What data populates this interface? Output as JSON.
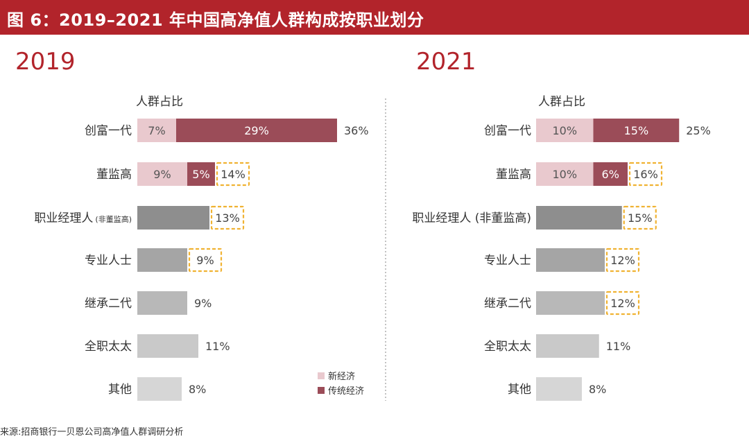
{
  "header": {
    "title": "图 6：2019–2021 年中国高净值人群构成按职业划分"
  },
  "source": "来源:招商银行一贝恩公司高净值人群调研分析",
  "colors": {
    "header_bg": "#b2242b",
    "new_economy": "#e9c9ce",
    "traditional_economy": "#9b4c58",
    "total_bar_shades": [
      "#8e8e8e",
      "#a5a5a5",
      "#b8b8b8",
      "#c9c9c9",
      "#d6d6d6",
      "#e2e2e2"
    ],
    "highlight_border": "#f0b232"
  },
  "chart_data": [
    {
      "type": "bar",
      "year": "2019",
      "subtitle": "人群占比",
      "categories": [
        "创富一代",
        "董监高",
        "职业经理人",
        "专业人士",
        "继承二代",
        "全职太太",
        "其他"
      ],
      "category_suffix": [
        "",
        "",
        "(非董监高)",
        "",
        "",
        "",
        ""
      ],
      "series": [
        {
          "name": "新经济",
          "values": [
            7,
            9,
            null,
            null,
            null,
            null,
            null
          ]
        },
        {
          "name": "传统经济",
          "values": [
            29,
            5,
            null,
            null,
            null,
            null,
            null
          ]
        }
      ],
      "segment_labels": [
        [
          "7%",
          "29%"
        ],
        [
          "9%",
          "5%"
        ],
        [],
        [],
        [],
        [],
        []
      ],
      "totals": [
        36,
        14,
        13,
        9,
        9,
        11,
        8
      ],
      "total_labels": [
        "36%",
        "14%",
        "13%",
        "9%",
        "9%",
        "11%",
        "8%"
      ],
      "highlighted": [
        false,
        true,
        true,
        true,
        false,
        false,
        false
      ],
      "legend": [
        "新经济",
        "传统经济"
      ],
      "legend_position": "bottom-right",
      "unit": "%"
    },
    {
      "type": "bar",
      "year": "2021",
      "subtitle": "人群占比",
      "categories": [
        "创富一代",
        "董监高",
        "职业经理人 (非董监高)",
        "专业人士",
        "继承二代",
        "全职太太",
        "其他"
      ],
      "category_suffix": [
        "",
        "",
        "",
        "",
        "",
        "",
        ""
      ],
      "series": [
        {
          "name": "新经济",
          "values": [
            10,
            10,
            null,
            null,
            null,
            null,
            null
          ]
        },
        {
          "name": "传统经济",
          "values": [
            15,
            6,
            null,
            null,
            null,
            null,
            null
          ]
        }
      ],
      "segment_labels": [
        [
          "10%",
          "15%"
        ],
        [
          "10%",
          "6%"
        ],
        [],
        [],
        [],
        [],
        []
      ],
      "totals": [
        25,
        16,
        15,
        12,
        12,
        11,
        8
      ],
      "total_labels": [
        "25%",
        "16%",
        "15%",
        "12%",
        "12%",
        "11%",
        "8%"
      ],
      "highlighted": [
        false,
        true,
        true,
        true,
        true,
        false,
        false
      ],
      "unit": "%"
    }
  ]
}
